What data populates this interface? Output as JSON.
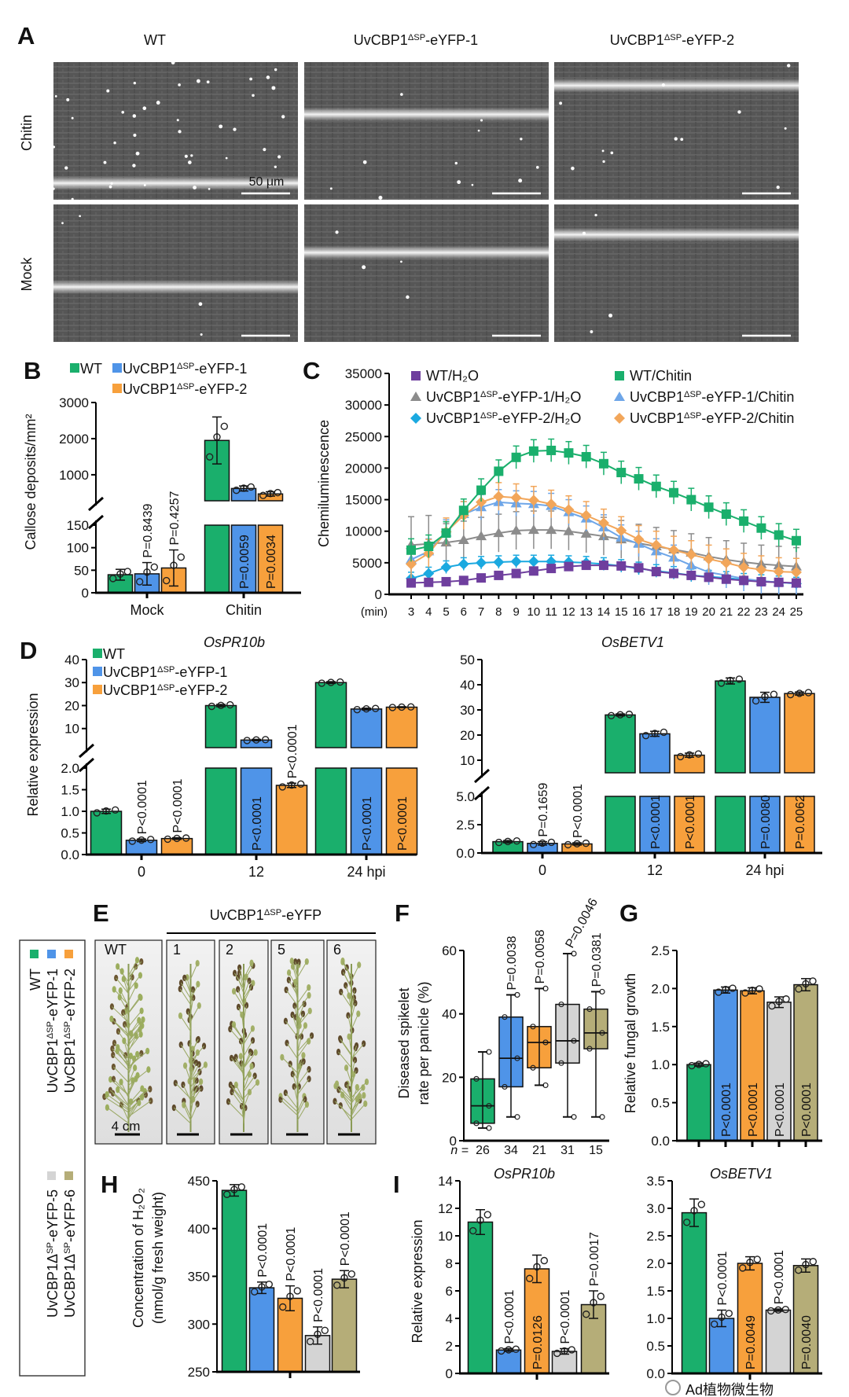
{
  "panels": [
    "A",
    "B",
    "C",
    "D",
    "E",
    "F",
    "G",
    "H",
    "I"
  ],
  "genotypes": [
    {
      "prefix": "WT",
      "sup": "",
      "suffix": "",
      "color": "#1aaf6c"
    },
    {
      "prefix": "UvCBP1",
      "sup": "ΔSP",
      "suffix": "-eYFP-1",
      "color": "#4f94e8"
    },
    {
      "prefix": "UvCBP1",
      "sup": "ΔSP",
      "suffix": "-eYFP-2",
      "color": "#f7a03c"
    },
    {
      "prefix": "UvCBP1Δ",
      "sup": "SP",
      "suffix": "-eYFP-5",
      "color": "#d4d4d4"
    },
    {
      "prefix": "UvCBP1Δ",
      "sup": "SP",
      "suffix": "-eYFP-6",
      "color": "#b5ad78"
    }
  ],
  "micrographs": {
    "columns": [
      {
        "prefix": "WT",
        "sup": "",
        "suffix": ""
      },
      {
        "prefix": "UvCBP1",
        "sup": "ΔSP",
        "suffix": "-eYFP-1"
      },
      {
        "prefix": "UvCBP1",
        "sup": "ΔSP",
        "suffix": "-eYFP-2"
      }
    ],
    "rows": [
      "Chitin",
      "Mock"
    ],
    "scale_bar": "50 μm"
  },
  "panicles": {
    "header": {
      "prefix": "UvCBP1",
      "sup": "ΔSP",
      "suffix": "-eYFP"
    },
    "labels": [
      "WT",
      "1",
      "2",
      "5",
      "6"
    ],
    "scale_bar": "4 cm"
  },
  "watermark": "Ad植物微生物",
  "chart_data": [
    {
      "type": "bar",
      "panel": "B",
      "ylabel": "Callose deposits/mm²",
      "categories": [
        "Mock",
        "Chitin"
      ],
      "y_axis": {
        "lower": [
          0,
          150
        ],
        "upper": [
          280,
          3000
        ],
        "lower_ticks": [
          "0",
          "50",
          "100",
          "150"
        ],
        "upper_ticks": [
          "1000",
          "2000",
          "3000"
        ]
      },
      "legend_position": "top",
      "series": [
        {
          "genotype": 0,
          "values": [
            40,
            1950
          ],
          "sd": [
            12,
            650
          ],
          "p_labels": [
            "",
            ""
          ],
          "p_pos": [
            "",
            ""
          ]
        },
        {
          "genotype": 1,
          "values": [
            42,
            620
          ],
          "sd": [
            25,
            70
          ],
          "p_labels": [
            "P=0.8439",
            "P=0.0059"
          ],
          "p_pos": [
            "above",
            "inside"
          ]
        },
        {
          "genotype": 2,
          "values": [
            55,
            470
          ],
          "sd": [
            40,
            60
          ],
          "p_labels": [
            "P=0.4257",
            "P=0.0034"
          ],
          "p_pos": [
            "above",
            "inside"
          ]
        }
      ]
    },
    {
      "type": "line",
      "panel": "C",
      "ylabel": "Chemiluminescence",
      "xlabel": "(min)",
      "x": [
        3,
        4,
        5,
        6,
        7,
        8,
        9,
        10,
        11,
        12,
        13,
        14,
        15,
        16,
        17,
        18,
        19,
        20,
        21,
        22,
        23,
        24,
        25
      ],
      "ylim": [
        0,
        35000
      ],
      "yticks": [
        "0",
        "5000",
        "10000",
        "15000",
        "20000",
        "25000",
        "30000",
        "35000"
      ],
      "legend_position": "top",
      "series": [
        {
          "label": {
            "prefix": "WT/H₂O",
            "sup": "",
            "suffix": ""
          },
          "color": "#6f3f9e",
          "marker": "square",
          "sd": 500,
          "values": [
            1800,
            1900,
            2000,
            2200,
            2600,
            3000,
            3300,
            3700,
            4100,
            4400,
            4600,
            4600,
            4500,
            4200,
            3600,
            3300,
            3000,
            2700,
            2400,
            2200,
            2000,
            1900,
            1800
          ]
        },
        {
          "label": {
            "prefix": "WT/Chitin",
            "sup": "",
            "suffix": ""
          },
          "color": "#1aaf6c",
          "marker": "square",
          "sd": 1800,
          "values": [
            7000,
            7600,
            9700,
            13300,
            16500,
            19500,
            21700,
            22700,
            22800,
            22400,
            21800,
            20700,
            19300,
            18300,
            17100,
            16100,
            15000,
            13800,
            12700,
            11600,
            10500,
            9400,
            8500
          ]
        },
        {
          "label": {
            "prefix": "UvCBP1",
            "sup": "ΔSP",
            "suffix": "-eYFP-1/H₂O"
          },
          "color": "#8c8c8c",
          "marker": "triangle",
          "sd": 3000,
          "values": [
            7800,
            8000,
            8200,
            8600,
            9200,
            9700,
            10100,
            10200,
            10200,
            10000,
            9600,
            9200,
            8700,
            8100,
            7600,
            7100,
            6600,
            6000,
            5500,
            5100,
            4800,
            4600,
            4400
          ]
        },
        {
          "label": {
            "prefix": "UvCBP1",
            "sup": "ΔSP",
            "suffix": "-eYFP-1/Chitin"
          },
          "color": "#6ea6e8",
          "marker": "triangle",
          "sd": 2000,
          "values": [
            5500,
            6800,
            9800,
            12700,
            13800,
            14600,
            14400,
            14300,
            14000,
            13000,
            12000,
            10600,
            9000,
            8000,
            6800,
            5800,
            4600,
            3500,
            3000,
            2500,
            2100,
            1900,
            1700
          ]
        },
        {
          "label": {
            "prefix": "UvCBP1",
            "sup": "ΔSP",
            "suffix": "-eYFP-2/H₂O"
          },
          "color": "#1ba9e0",
          "marker": "diamond",
          "sd": 1000,
          "values": [
            2500,
            3300,
            4300,
            4800,
            5000,
            5100,
            5200,
            5200,
            5200,
            5100,
            5000,
            4800,
            4500,
            4100,
            3700,
            3400,
            3000,
            2800,
            2600,
            2300,
            2100,
            1900,
            1700
          ]
        },
        {
          "label": {
            "prefix": "UvCBP1",
            "sup": "ΔSP",
            "suffix": "-eYFP-2/Chitin"
          },
          "color": "#f2a65a",
          "marker": "diamond",
          "sd": 2200,
          "values": [
            4800,
            6500,
            9900,
            12500,
            14600,
            15500,
            15300,
            14900,
            14300,
            13400,
            12500,
            11300,
            10100,
            8700,
            7800,
            7000,
            6300,
            5600,
            5000,
            4300,
            3900,
            3600,
            3500
          ]
        }
      ]
    },
    {
      "type": "bar",
      "panel": "D",
      "title": "OsPR10b",
      "ylabel": "Relative expression",
      "categories": [
        "0",
        "12",
        "24 hpi"
      ],
      "y_axis": {
        "lower": [
          0,
          2
        ],
        "upper": [
          1.7,
          40
        ],
        "lower_ticks": [
          "0.0",
          "0.5",
          "1.0",
          "1.5",
          "2.0"
        ],
        "upper_ticks": [
          "10",
          "20",
          "30",
          "40"
        ]
      },
      "legend_position": "top-left",
      "series": [
        {
          "genotype": 0,
          "values": [
            1.0,
            20,
            30
          ],
          "sd": [
            0.05,
            0.5,
            0.4
          ],
          "p_labels": [
            "",
            "",
            ""
          ],
          "p_pos": [
            "",
            "",
            ""
          ]
        },
        {
          "genotype": 1,
          "values": [
            0.33,
            5,
            18.5
          ],
          "sd": [
            0.03,
            0.3,
            0.4
          ],
          "p_labels": [
            "P<0.0001",
            "P<0.0001",
            "P<0.0001"
          ],
          "p_pos": [
            "above",
            "inside",
            "inside"
          ]
        },
        {
          "genotype": 2,
          "values": [
            0.37,
            1.6,
            19.3
          ],
          "sd": [
            0.02,
            0.05,
            0.2
          ],
          "p_labels": [
            "P<0.0001",
            "P<0.0001",
            "P<0.0001"
          ],
          "p_pos": [
            "above",
            "above",
            "inside"
          ]
        }
      ]
    },
    {
      "type": "bar",
      "panel": "D",
      "title": "OsBETV1",
      "categories": [
        "0",
        "12",
        "24 hpi"
      ],
      "y_axis": {
        "lower": [
          0,
          5
        ],
        "upper": [
          5,
          50
        ],
        "lower_ticks": [
          "0.0",
          "2.5",
          "5.0"
        ],
        "upper_ticks": [
          "10",
          "20",
          "30",
          "40",
          "50"
        ]
      },
      "series": [
        {
          "genotype": 0,
          "values": [
            1.0,
            28,
            41.5
          ],
          "sd": [
            0.1,
            0.4,
            1.2
          ],
          "p_labels": [
            "",
            "",
            ""
          ],
          "p_pos": [
            "",
            "",
            ""
          ]
        },
        {
          "genotype": 1,
          "values": [
            0.85,
            20.5,
            35
          ],
          "sd": [
            0.15,
            1.0,
            2.0
          ],
          "p_labels": [
            "P=0.1659",
            "P<0.0001",
            "P=0.0080"
          ],
          "p_pos": [
            "above",
            "inside",
            "inside"
          ]
        },
        {
          "genotype": 2,
          "values": [
            0.8,
            12,
            36.5
          ],
          "sd": [
            0.1,
            0.8,
            0.6
          ],
          "p_labels": [
            "P<0.0001",
            "P<0.0001",
            "P=0.0062"
          ],
          "p_pos": [
            "above",
            "inside",
            "inside"
          ]
        }
      ]
    },
    {
      "type": "box",
      "panel": "F",
      "ylabel": [
        "Diseased spikelet",
        "rate per panicle (%)"
      ],
      "ylim": [
        0,
        60
      ],
      "yticks": [
        "0",
        "20",
        "40",
        "60"
      ],
      "n_prefix": "n =",
      "groups": [
        {
          "genotype": 0,
          "n": "26",
          "min": 4,
          "q1": 5.5,
          "median": 11,
          "q3": 19.5,
          "max": 28,
          "p_label": ""
        },
        {
          "genotype": 1,
          "n": "34",
          "min": 7.5,
          "q1": 17,
          "median": 26,
          "q3": 39,
          "max": 46,
          "p_label": "P=0.0038"
        },
        {
          "genotype": 2,
          "n": "21",
          "min": 17.5,
          "q1": 23,
          "median": 31,
          "q3": 36,
          "max": 48,
          "p_label": "P=0.0058"
        },
        {
          "genotype": 3,
          "n": "31",
          "min": 7.5,
          "q1": 24.5,
          "median": 31.5,
          "q3": 43,
          "max": 59,
          "p_label": "P=0.0046"
        },
        {
          "genotype": 4,
          "n": "15",
          "min": 7.5,
          "q1": 29,
          "median": 34,
          "q3": 41.5,
          "max": 47,
          "p_label": "P=0.0381"
        }
      ]
    },
    {
      "type": "bar",
      "panel": "G",
      "ylabel": "Relative fungal growth",
      "ylim": [
        0,
        2.5
      ],
      "yticks": [
        "0.0",
        "0.5",
        "1.0",
        "1.5",
        "2.0",
        "2.5"
      ],
      "genotypes": [
        0,
        1,
        2,
        3,
        4
      ],
      "values": [
        1.0,
        1.98,
        1.97,
        1.82,
        2.05
      ],
      "sd": [
        0.02,
        0.04,
        0.04,
        0.07,
        0.08
      ],
      "p_labels": [
        "",
        "P<0.0001",
        "P<0.0001",
        "P<0.0001",
        "P<0.0001"
      ],
      "p_pos": [
        "",
        "inside",
        "inside",
        "inside",
        "inside"
      ]
    },
    {
      "type": "bar",
      "panel": "H",
      "ylabel": [
        "Concentration of H₂O₂",
        "(nmol/g fresh weight)"
      ],
      "ylim": [
        250,
        450
      ],
      "yticks": [
        "250",
        "300",
        "350",
        "400",
        "450"
      ],
      "genotypes": [
        0,
        1,
        2,
        3,
        4
      ],
      "values": [
        440,
        338,
        327,
        288,
        347
      ],
      "sd": [
        6,
        6,
        13,
        9,
        9
      ],
      "p_labels": [
        "",
        "P<0.0001",
        "P<0.0001",
        "P<0.0001",
        "P<0.0001"
      ],
      "p_pos": [
        "",
        "above",
        "above",
        "above",
        "above"
      ]
    },
    {
      "type": "bar",
      "panel": "I",
      "title": "OsPR10b",
      "ylabel": "Relative expression",
      "ylim": [
        0,
        14
      ],
      "yticks": [
        "0",
        "2",
        "4",
        "6",
        "8",
        "10",
        "12",
        "14"
      ],
      "genotypes": [
        0,
        1,
        2,
        3,
        4
      ],
      "values": [
        11.0,
        1.7,
        7.6,
        1.6,
        5.0
      ],
      "sd": [
        0.9,
        0.1,
        1.0,
        0.2,
        1.0
      ],
      "p_labels": [
        "",
        "P<0.0001",
        "P=0.0126",
        "P<0.0001",
        "P=0.0017"
      ],
      "p_pos": [
        "",
        "above",
        "inside",
        "above",
        "above"
      ]
    },
    {
      "type": "bar",
      "panel": "I",
      "title": "OsBETV1",
      "ylim": [
        0,
        3.5
      ],
      "yticks": [
        "0.0",
        "0.5",
        "1.0",
        "1.5",
        "2.0",
        "2.5",
        "3.0",
        "3.5"
      ],
      "genotypes": [
        0,
        1,
        2,
        3,
        4
      ],
      "values": [
        2.92,
        1.0,
        2.0,
        1.15,
        1.96
      ],
      "sd": [
        0.25,
        0.15,
        0.12,
        0.02,
        0.12
      ],
      "p_labels": [
        "",
        "P<0.0001",
        "P=0.0049",
        "P<0.0001",
        "P=0.0040"
      ],
      "p_pos": [
        "",
        "above",
        "inside",
        "above",
        "inside"
      ]
    }
  ]
}
